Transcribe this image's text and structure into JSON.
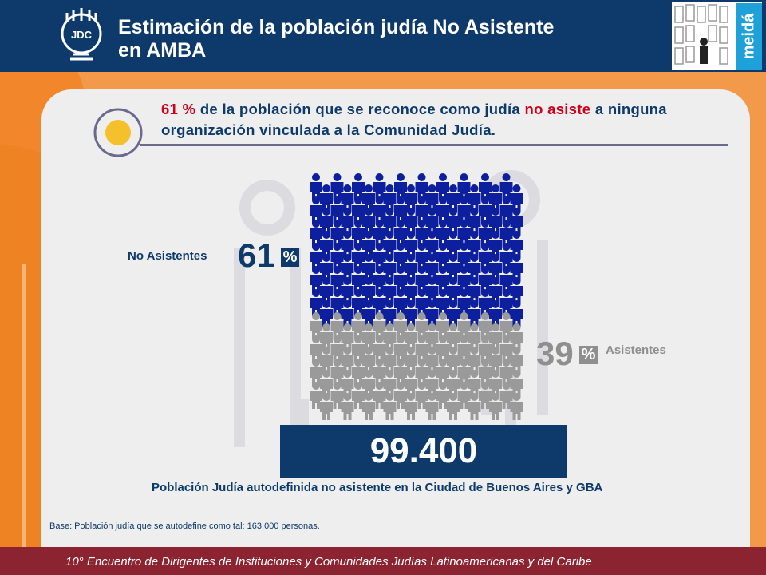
{
  "header": {
    "title_line1": "Estimación de la población judía No Asistente",
    "title_line2": "en AMBA",
    "logo_left": "JDC",
    "logo_right": "meidá"
  },
  "intro": {
    "pct": "61",
    "pct_sign": "%",
    "text_a": " de la población que se reconoce como judía ",
    "highlight": "no asiste",
    "text_b": " a ninguna organización vinculada a la Comunidad Judía."
  },
  "graphic": {
    "no_asistentes_label": "No Asistentes",
    "no_asistentes_pct": "61",
    "asistentes_label": "Asistentes",
    "asistentes_pct": "39",
    "pct_sign": "%",
    "colors": {
      "no_asistentes": "#0d1f9c",
      "asistentes": "#9a9a9a"
    }
  },
  "total": {
    "value": "99.400",
    "caption": "Población Judía autodefinida no asistente en la Ciudad de Buenos Aires y GBA"
  },
  "base_note": "Base: Población judía que se autodefine  como tal: 163.000 personas.",
  "footer": "10° Encuentro de Dirigentes de Instituciones y Comunidades  Judías Latinoamericanas  y del Caribe"
}
